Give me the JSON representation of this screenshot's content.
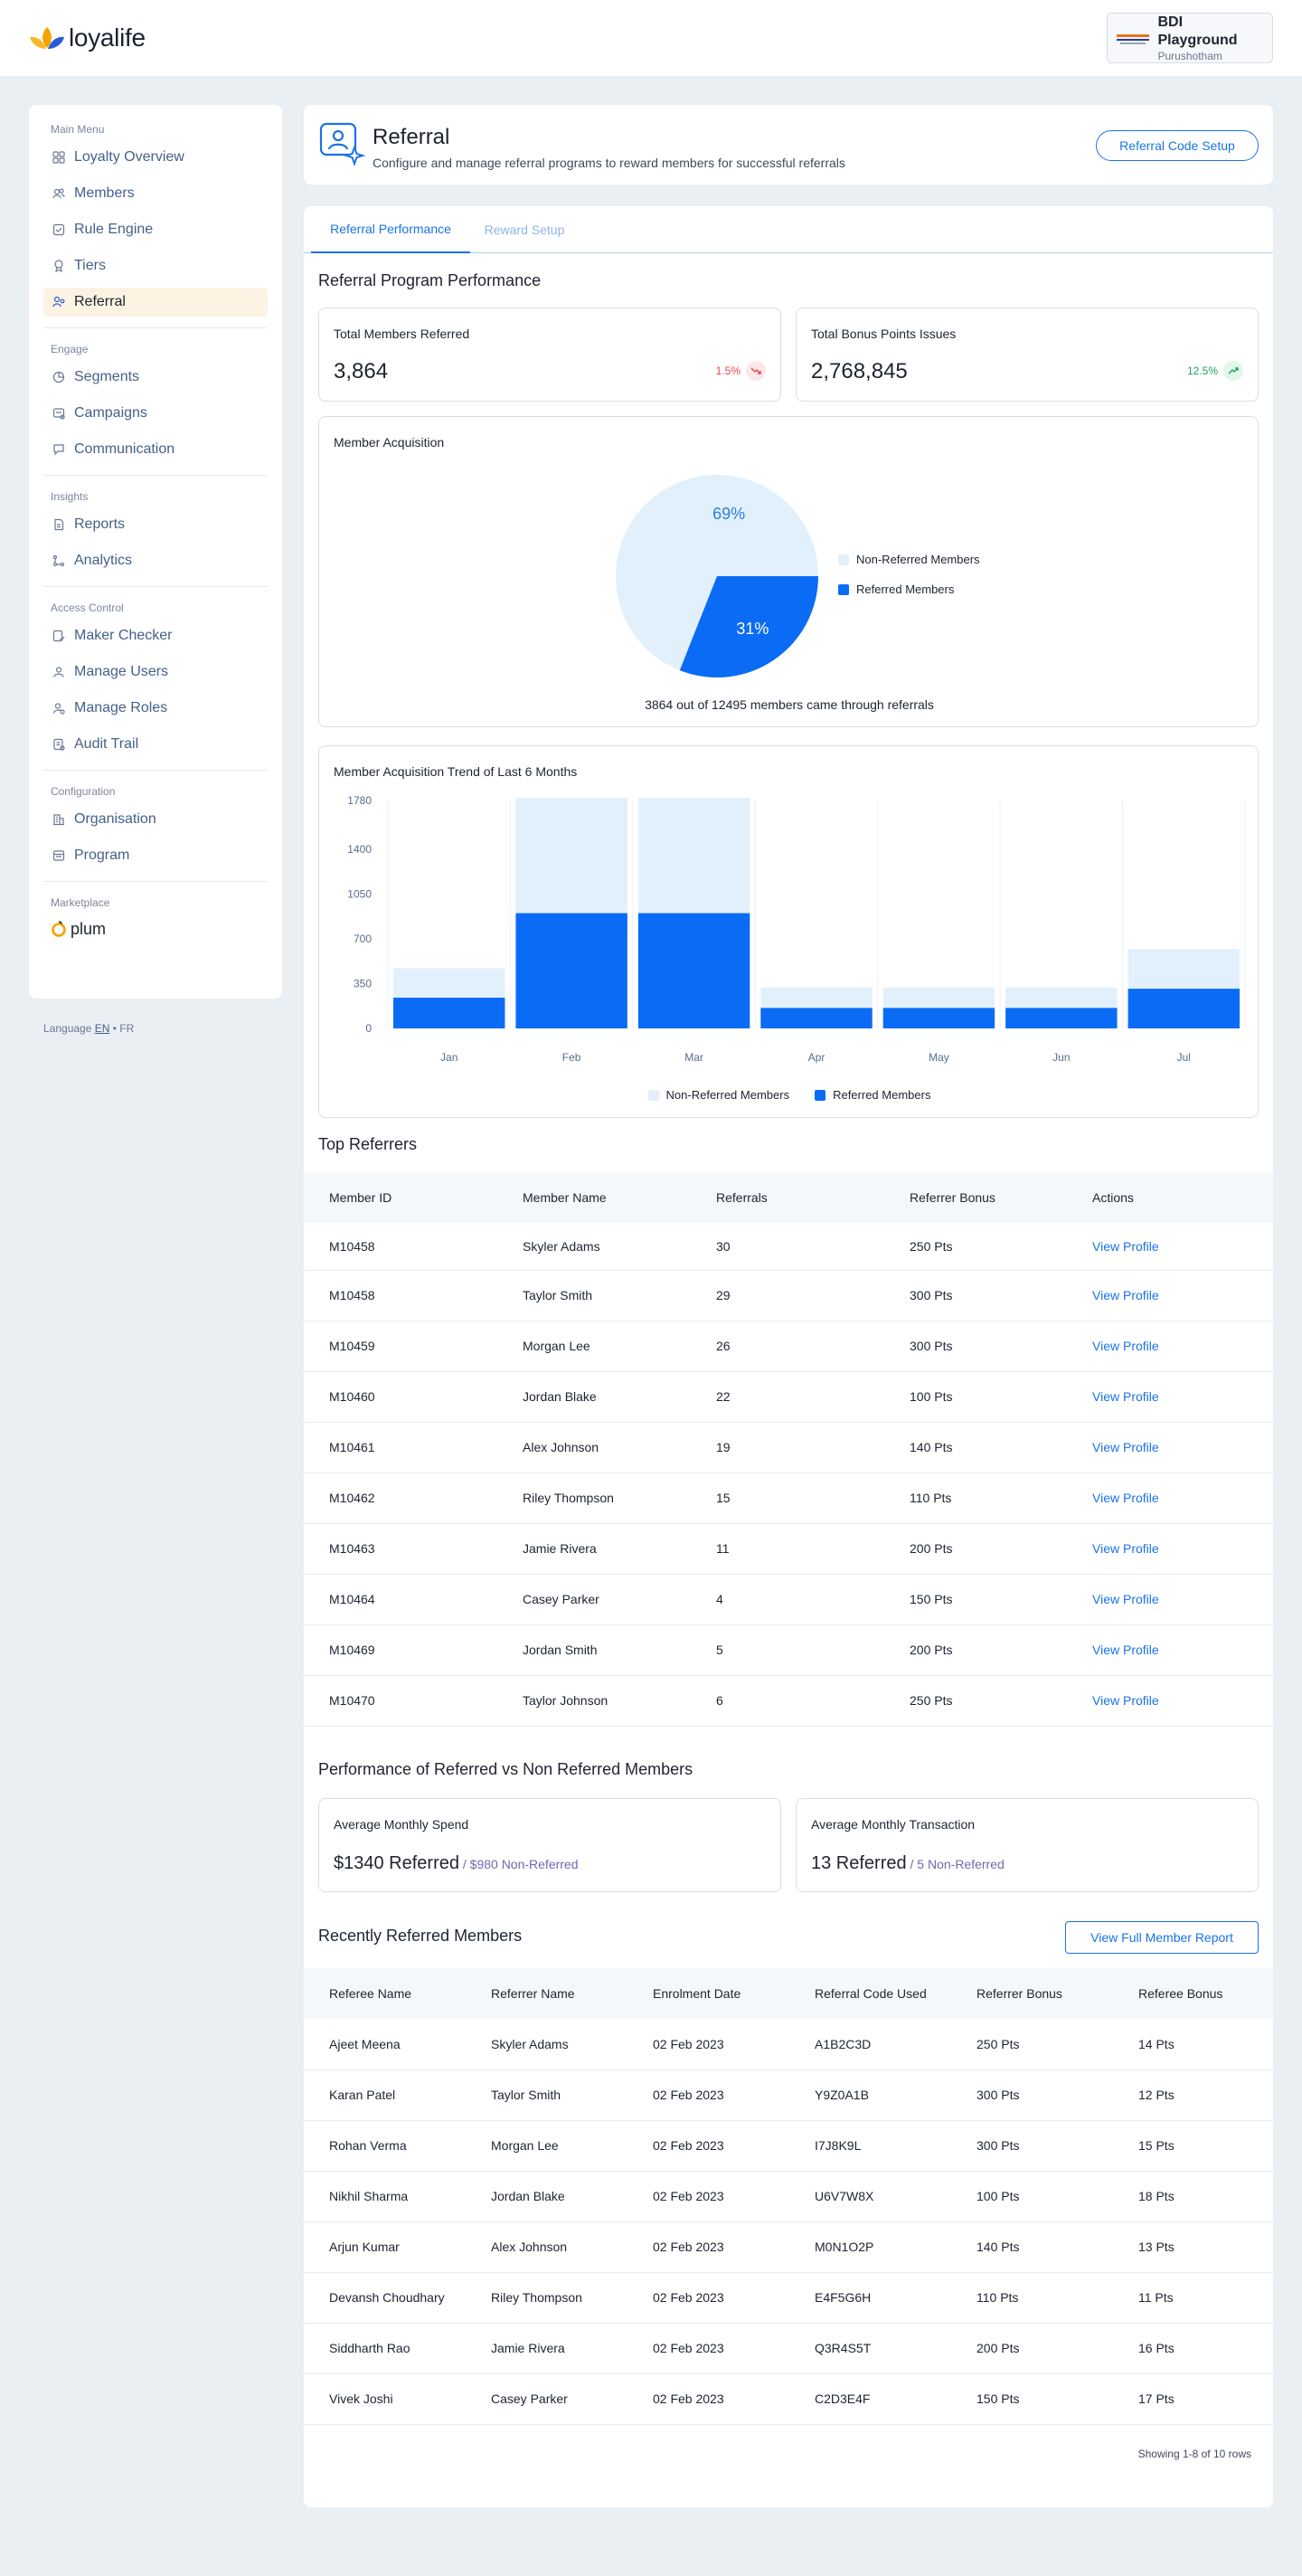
{
  "topbar": {
    "logo_text": "loyalife",
    "account_name": "BDI Playground",
    "account_user": "Purushotham"
  },
  "sidebar": {
    "sections": [
      {
        "title": "Main Menu",
        "items": [
          {
            "label": "Loyalty Overview",
            "icon": "grid-icon"
          },
          {
            "label": "Members",
            "icon": "users-icon"
          },
          {
            "label": "Rule Engine",
            "icon": "rule-icon"
          },
          {
            "label": "Tiers",
            "icon": "award-icon"
          },
          {
            "label": "Referral",
            "icon": "referral-icon",
            "active": true
          }
        ]
      },
      {
        "title": "Engage",
        "items": [
          {
            "label": "Segments",
            "icon": "pie-icon"
          },
          {
            "label": "Campaigns",
            "icon": "campaign-icon"
          },
          {
            "label": "Communication",
            "icon": "chat-icon"
          }
        ]
      },
      {
        "title": "Insights",
        "items": [
          {
            "label": "Reports",
            "icon": "report-icon"
          },
          {
            "label": "Analytics",
            "icon": "analytics-icon"
          }
        ]
      },
      {
        "title": "Access Control",
        "items": [
          {
            "label": "Maker Checker",
            "icon": "checker-icon"
          },
          {
            "label": "Manage Users",
            "icon": "manage-users-icon"
          },
          {
            "label": "Manage Roles",
            "icon": "roles-icon"
          },
          {
            "label": "Audit Trail",
            "icon": "audit-icon"
          }
        ]
      },
      {
        "title": "Configuration",
        "items": [
          {
            "label": "Organisation",
            "icon": "building-icon"
          },
          {
            "label": "Program",
            "icon": "program-icon"
          }
        ]
      }
    ],
    "marketplace_title": "Marketplace",
    "marketplace_item": "plum",
    "language_label": "Language",
    "lang_en": "EN",
    "lang_sep": "•",
    "lang_fr": "FR"
  },
  "header": {
    "title": "Referral",
    "subtitle": "Configure and manage referral programs to reward members for successful referrals",
    "setup_button": "Referral Code Setup"
  },
  "tabs": [
    "Referral Performance",
    "Reward Setup"
  ],
  "performance": {
    "title": "Referral Program Performance",
    "stats": [
      {
        "label": "Total Members Referred",
        "value": "3,864",
        "change": "1.5%",
        "direction": "down",
        "color": "#e5484d"
      },
      {
        "label": "Total Bonus Points Issues",
        "value": "2,768,845",
        "change": "12.5%",
        "direction": "up",
        "color": "#20a35a"
      }
    ]
  },
  "acquisition": {
    "title": "Member Acquisition",
    "caption": "3864 out of 12495 members came through referrals",
    "chart_data": {
      "type": "pie",
      "slices": [
        {
          "name": "Non-Referred Members",
          "value": 69,
          "label": "69%",
          "color": "#e2f0fc"
        },
        {
          "name": "Referred Members",
          "value": 31,
          "label": "31%",
          "color": "#0a6cf5"
        }
      ]
    }
  },
  "trend": {
    "title": "Member Acquisition Trend of Last 6 Months",
    "chart_data": {
      "type": "bar",
      "stacked": true,
      "categories": [
        "Jan",
        "Feb",
        "Mar",
        "Apr",
        "May",
        "Jun",
        "Jul"
      ],
      "series": [
        {
          "name": "Referred Members",
          "values": [
            240,
            900,
            900,
            160,
            160,
            160,
            310
          ],
          "color": "#0a6cf5"
        },
        {
          "name": "Non-Referred Members",
          "values": [
            230,
            900,
            900,
            160,
            160,
            160,
            310
          ],
          "color": "#e2f0fc"
        }
      ],
      "yticks": [
        "1780",
        "1400",
        "1050",
        "700",
        "350",
        "0"
      ],
      "ylim": [
        0,
        1780
      ],
      "legend": [
        "Non-Referred Members",
        "Referred Members"
      ]
    }
  },
  "top_referrers": {
    "title": "Top Referrers",
    "columns": [
      "Member ID",
      "Member Name",
      "Referrals",
      "Referrer Bonus",
      "Actions"
    ],
    "rows": [
      [
        "M10458",
        "Skyler Adams",
        "30",
        "250 Pts",
        "View Profile"
      ],
      [
        "M10458",
        "Taylor Smith",
        "29",
        "300 Pts",
        "View Profile"
      ],
      [
        "M10459",
        "Morgan Lee",
        "26",
        "300 Pts",
        "View Profile"
      ],
      [
        "M10460",
        "Jordan Blake",
        "22",
        "100 Pts",
        "View Profile"
      ],
      [
        "M10461",
        "Alex Johnson",
        "19",
        "140 Pts",
        "View Profile"
      ],
      [
        "M10462",
        "Riley Thompson",
        "15",
        "110 Pts",
        "View Profile"
      ],
      [
        "M10463",
        "Jamie Rivera",
        "11",
        "200 Pts",
        "View Profile"
      ],
      [
        "M10464",
        "Casey Parker",
        "4",
        "150 Pts",
        "View Profile"
      ],
      [
        "M10469",
        "Jordan Smith",
        "5",
        "200 Pts",
        "View Profile"
      ],
      [
        "M10470",
        "Taylor Johnson",
        "6",
        "250 Pts",
        "View Profile"
      ]
    ]
  },
  "comparison": {
    "title": "Performance of Referred vs Non Referred Members",
    "cards": [
      {
        "label": "Average Monthly Spend",
        "main": "$1340 Referred",
        "sub": "/ $980 Non-Referred"
      },
      {
        "label": "Average Monthly Transaction",
        "main": "13 Referred",
        "sub": "/ 5 Non-Referred"
      }
    ]
  },
  "recent": {
    "title": "Recently Referred Members",
    "report_button": "View Full Member Report",
    "columns": [
      "Referee Name",
      "Referrer Name",
      "Enrolment Date",
      "Referral Code Used",
      "Referrer Bonus",
      "Referee Bonus"
    ],
    "rows": [
      [
        "Ajeet Meena",
        "Skyler Adams",
        "02 Feb 2023",
        "A1B2C3D",
        "250 Pts",
        "14 Pts"
      ],
      [
        "Karan Patel",
        "Taylor Smith",
        "02 Feb 2023",
        "Y9Z0A1B",
        "300 Pts",
        "12 Pts"
      ],
      [
        "Rohan Verma",
        "Morgan Lee",
        "02 Feb 2023",
        "I7J8K9L",
        "300 Pts",
        "15 Pts"
      ],
      [
        "Nikhil Sharma",
        "Jordan Blake",
        "02 Feb 2023",
        "U6V7W8X",
        "100 Pts",
        "18 Pts"
      ],
      [
        "Arjun Kumar",
        "Alex Johnson",
        "02 Feb 2023",
        "M0N1O2P",
        "140 Pts",
        "13 Pts"
      ],
      [
        "Devansh Choudhary",
        "Riley Thompson",
        "02 Feb 2023",
        "E4F5G6H",
        "110 Pts",
        "11 Pts"
      ],
      [
        "Siddharth Rao",
        "Jamie Rivera",
        "02 Feb 2023",
        "Q3R4S5T",
        "200 Pts",
        "16 Pts"
      ],
      [
        "Vivek Joshi",
        "Casey Parker",
        "02 Feb 2023",
        "C2D3E4F",
        "150 Pts",
        "17 Pts"
      ]
    ],
    "footer": "Showing 1-8 of 10 rows"
  }
}
